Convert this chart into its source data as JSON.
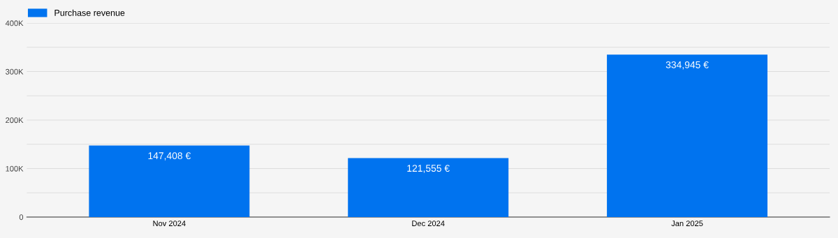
{
  "chart_data": {
    "type": "bar",
    "categories": [
      "Nov 2024",
      "Dec 2024",
      "Jan 2025"
    ],
    "series": [
      {
        "name": "Purchase revenue",
        "color": "#0073ef",
        "values": [
          147408,
          121555,
          334945
        ],
        "value_labels": [
          "147,408 €",
          "121,555 €",
          "334,945 €"
        ]
      }
    ],
    "ylim": [
      0,
      400000
    ],
    "yticks": [
      0,
      {
        "value": 50000,
        "label": null
      },
      {
        "value": 100000,
        "label": "100K"
      },
      {
        "value": 150000,
        "label": null
      },
      {
        "value": 200000,
        "label": "200K"
      },
      {
        "value": 250000,
        "label": null
      },
      {
        "value": 300000,
        "label": "300K"
      },
      {
        "value": 350000,
        "label": null
      },
      {
        "value": 400000,
        "label": "400K"
      }
    ],
    "grid": "y",
    "legend": "top left"
  }
}
